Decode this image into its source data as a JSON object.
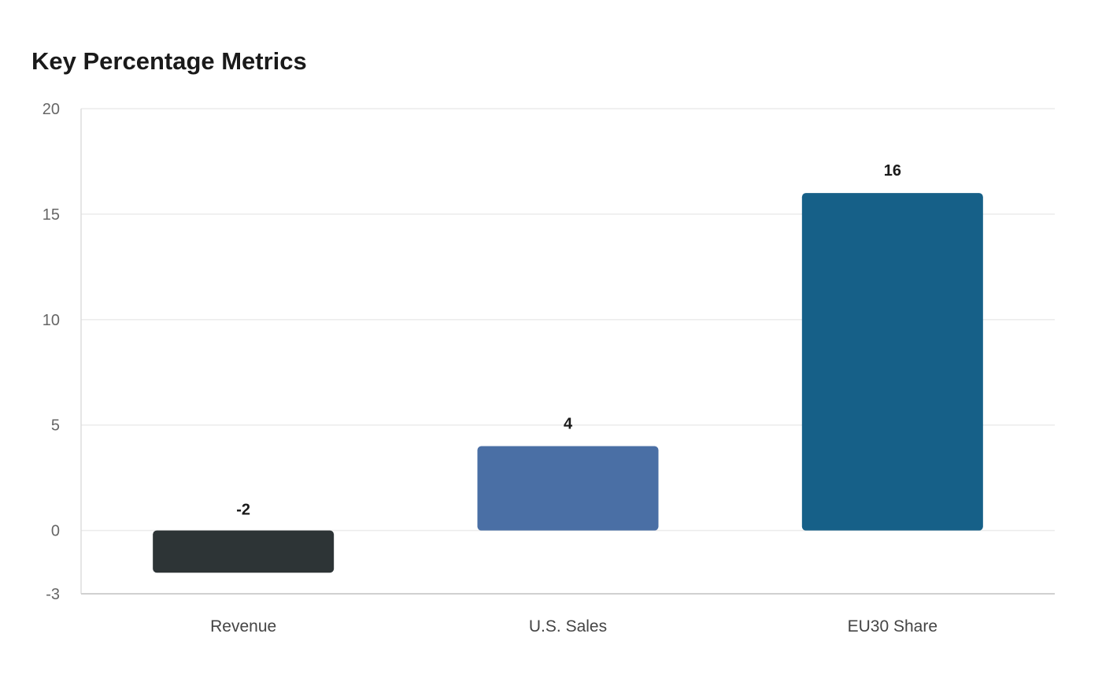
{
  "chart_data": {
    "type": "bar",
    "title": "Key Percentage Metrics",
    "xlabel": "",
    "ylabel": "",
    "categories": [
      "Revenue",
      "U.S. Sales",
      "EU30 Share"
    ],
    "values": [
      -2,
      4,
      16
    ],
    "data_labels": [
      "-2",
      "4",
      "16"
    ],
    "colors": [
      "#2d3436",
      "#4a6fa5",
      "#166088"
    ],
    "ylim": [
      -3,
      20
    ],
    "yticks": [
      -3,
      0,
      5,
      10,
      15,
      20
    ],
    "grid": true,
    "legend": "none"
  }
}
